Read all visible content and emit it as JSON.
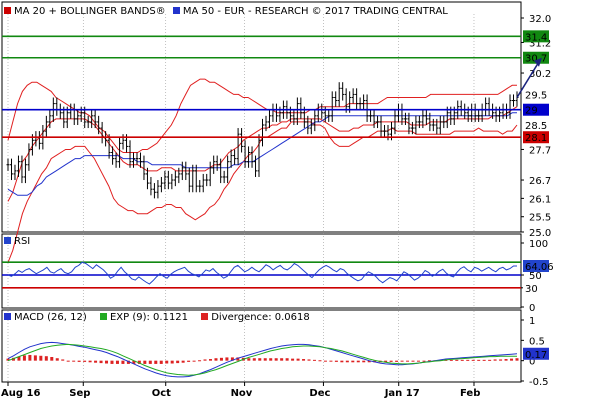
{
  "colors": {
    "price": "#000000",
    "bollinger": "#e02020",
    "ma50": "#2233cc",
    "resistance": "#118811",
    "pivot": "#0000cc",
    "support": "#cc0000",
    "arrow": "#1a237e",
    "rsi_line": "#2244cc",
    "macd_line": "#2233cc",
    "signal_line": "#22aa22",
    "divergence": "#dd2222",
    "grid": "#999999"
  },
  "chart_data": [
    {
      "type": "candlestick",
      "legend": [
        {
          "swatch": "#cc0000",
          "text": "MA 20 + BOLLINGER BANDS®"
        },
        {
          "swatch": "#2233cc",
          "text": "MA 50 - EUR - RESEARCH © 2017 TRADING CENTRAL"
        }
      ],
      "ylim": [
        25.0,
        32.0
      ],
      "y_ticks": [
        {
          "v": 32.0,
          "t": "32.0"
        },
        {
          "v": 31.2,
          "t": "31.2"
        },
        {
          "v": 30.2,
          "t": "30.2"
        },
        {
          "v": 27.7,
          "t": "27.7"
        },
        {
          "v": 26.7,
          "t": "26.7"
        },
        {
          "v": 26.1,
          "t": "26.1"
        },
        {
          "v": 25.5,
          "t": "25.5"
        },
        {
          "v": 25.0,
          "t": "25.0"
        }
      ],
      "levels": [
        {
          "name": "resistance-2",
          "value": 31.4,
          "label": "31.4",
          "color": "#118811"
        },
        {
          "name": "resistance-1",
          "value": 30.7,
          "label": "30.7",
          "color": "#118811"
        },
        {
          "name": "pivot",
          "value": 29.0,
          "label": "29",
          "color": "#0000cc"
        },
        {
          "name": "support-1",
          "value": 28.1,
          "label": "28.1",
          "color": "#cc0000"
        }
      ],
      "value_tags": [
        {
          "value": 29.5,
          "label": "29.5",
          "color": "#cc0000"
        },
        {
          "value": 28.5,
          "label": "28.5",
          "color": "#cc0000"
        }
      ],
      "x_labels": [
        {
          "i": 0,
          "t": "Aug 16"
        },
        {
          "i": 21,
          "t": "Sep"
        },
        {
          "i": 44,
          "t": "Oct"
        },
        {
          "i": 66,
          "t": "Nov"
        },
        {
          "i": 88,
          "t": "Dec"
        },
        {
          "i": 109,
          "t": "Jan 17"
        },
        {
          "i": 130,
          "t": "Feb"
        }
      ],
      "close": [
        27.2,
        26.9,
        27.0,
        27.3,
        26.8,
        27.2,
        27.7,
        28.0,
        28.1,
        27.9,
        28.3,
        28.6,
        28.8,
        29.2,
        29.0,
        28.9,
        28.6,
        28.9,
        29.0,
        28.7,
        28.8,
        28.9,
        28.6,
        28.6,
        28.8,
        28.6,
        28.4,
        28.1,
        28.0,
        27.6,
        27.4,
        27.3,
        27.9,
        28.0,
        27.8,
        27.3,
        27.4,
        27.4,
        27.3,
        26.9,
        26.6,
        26.4,
        26.3,
        26.5,
        26.6,
        26.8,
        26.6,
        26.7,
        26.8,
        26.9,
        27.1,
        26.9,
        26.5,
        27.0,
        26.5,
        26.5,
        26.7,
        26.7,
        27.1,
        27.3,
        27.2,
        26.8,
        26.8,
        27.3,
        27.5,
        27.4,
        28.2,
        27.8,
        27.3,
        27.6,
        27.3,
        27.0,
        28.0,
        28.5,
        28.6,
        28.8,
        29.0,
        28.8,
        28.9,
        29.1,
        28.9,
        28.8,
        28.7,
        29.2,
        28.9,
        28.6,
        28.4,
        28.5,
        28.8,
        29.0,
        28.9,
        28.8,
        28.8,
        29.4,
        29.3,
        29.7,
        29.5,
        29.1,
        29.4,
        29.5,
        29.2,
        29.2,
        29.3,
        28.8,
        28.8,
        28.6,
        28.6,
        28.3,
        28.3,
        28.2,
        28.4,
        28.8,
        29.0,
        28.7,
        28.7,
        28.4,
        28.4,
        28.6,
        28.6,
        28.8,
        28.7,
        28.5,
        28.5,
        28.4,
        28.6,
        28.6,
        28.9,
        28.7,
        28.9,
        29.1,
        29.0,
        28.9,
        28.8,
        29.0,
        28.8,
        28.8,
        29.0,
        29.2,
        29.0,
        28.9,
        28.8,
        28.9,
        29.0,
        28.9,
        29.3,
        29.3,
        29.4
      ],
      "ma20": [
        26.0,
        26.3,
        26.8,
        27.3,
        27.5,
        27.8,
        28.0,
        28.2,
        28.4,
        28.6,
        28.7,
        28.7,
        28.7,
        28.7,
        28.7,
        28.7,
        28.7,
        28.6,
        28.5,
        28.3,
        28.1,
        27.9,
        27.7,
        27.5,
        27.3,
        27.2,
        27.2,
        27.2,
        27.1,
        27.0,
        27.0,
        27.0,
        27.1,
        27.1,
        27.1,
        27.0,
        27.0,
        27.0,
        27.0,
        27.0,
        27.0,
        27.0,
        27.1,
        27.2,
        27.2,
        27.4,
        27.6,
        27.7,
        27.8,
        28.0,
        28.1,
        28.2,
        28.3,
        28.4,
        28.4,
        28.5,
        28.5,
        28.6,
        28.6,
        28.7,
        28.7,
        28.7,
        28.7,
        28.7,
        28.7,
        28.7,
        28.6,
        28.5,
        28.4,
        28.3,
        28.3,
        28.3,
        28.4,
        28.4,
        28.5,
        28.5,
        28.5,
        28.6,
        28.6,
        28.6,
        28.6,
        28.6,
        28.6,
        28.6,
        28.5,
        28.5,
        28.5,
        28.5,
        28.6,
        28.6,
        28.6,
        28.6,
        28.7,
        28.7,
        28.7,
        28.7,
        28.7,
        28.7,
        28.7,
        28.7,
        28.7,
        28.8,
        28.8,
        28.8,
        28.9,
        29.0,
        29.1
      ],
      "bb_upper": [
        28.0,
        28.6,
        29.2,
        29.6,
        29.8,
        29.9,
        29.9,
        29.8,
        29.7,
        29.6,
        29.4,
        29.3,
        29.2,
        29.1,
        29.0,
        28.9,
        28.9,
        28.8,
        28.6,
        28.4,
        28.3,
        28.1,
        27.9,
        27.7,
        27.6,
        27.6,
        27.6,
        27.6,
        27.7,
        27.7,
        27.8,
        27.9,
        28.1,
        28.3,
        28.5,
        28.8,
        29.2,
        29.5,
        29.8,
        29.9,
        30.0,
        30.0,
        29.9,
        29.9,
        29.8,
        29.7,
        29.6,
        29.5,
        29.5,
        29.4,
        29.4,
        29.3,
        29.2,
        29.1,
        29.0,
        29.0,
        28.9,
        28.9,
        28.9,
        28.9,
        28.9,
        28.9,
        28.9,
        29.0,
        29.0,
        29.1,
        29.1,
        29.1,
        29.1,
        29.1,
        29.1,
        29.2,
        29.2,
        29.2,
        29.2,
        29.2,
        29.2,
        29.2,
        29.3,
        29.4,
        29.4,
        29.4,
        29.4,
        29.4,
        29.4,
        29.4,
        29.4,
        29.4,
        29.5,
        29.5,
        29.5,
        29.5,
        29.5,
        29.5,
        29.5,
        29.5,
        29.5,
        29.5,
        29.5,
        29.5,
        29.5,
        29.5,
        29.5,
        29.6,
        29.7,
        29.8,
        29.8
      ],
      "bb_lower": [
        24.0,
        24.4,
        25.0,
        25.6,
        26.0,
        26.3,
        26.6,
        26.9,
        27.1,
        27.4,
        27.5,
        27.6,
        27.7,
        27.7,
        27.8,
        27.8,
        27.8,
        27.6,
        27.4,
        27.1,
        26.8,
        26.5,
        26.1,
        25.9,
        25.8,
        25.7,
        25.7,
        25.6,
        25.6,
        25.6,
        25.7,
        25.8,
        25.8,
        25.9,
        25.9,
        25.8,
        25.8,
        25.6,
        25.5,
        25.4,
        25.5,
        25.6,
        25.8,
        25.9,
        26.1,
        26.4,
        26.6,
        26.9,
        27.1,
        27.3,
        27.5,
        27.6,
        27.8,
        28.1,
        28.1,
        28.2,
        28.3,
        28.4,
        28.4,
        28.6,
        28.6,
        28.6,
        28.6,
        28.6,
        28.5,
        28.5,
        28.4,
        28.1,
        27.9,
        27.8,
        27.8,
        27.8,
        27.9,
        28.0,
        28.1,
        28.1,
        28.2,
        28.3,
        28.3,
        28.3,
        28.4,
        28.3,
        28.3,
        28.3,
        28.3,
        28.2,
        28.2,
        28.2,
        28.2,
        28.2,
        28.2,
        28.2,
        28.2,
        28.3,
        28.3,
        28.3,
        28.3,
        28.3,
        28.4,
        28.3,
        28.3,
        28.3,
        28.3,
        28.2,
        28.3,
        28.3,
        28.5
      ],
      "ma50": [
        26.4,
        26.3,
        26.2,
        26.2,
        26.2,
        26.3,
        26.5,
        26.6,
        26.8,
        26.9,
        27.0,
        27.1,
        27.2,
        27.3,
        27.4,
        27.4,
        27.5,
        27.5,
        27.5,
        27.5,
        27.5,
        27.5,
        27.5,
        27.5,
        27.4,
        27.4,
        27.4,
        27.3,
        27.3,
        27.3,
        27.2,
        27.2,
        27.2,
        27.2,
        27.2,
        27.2,
        27.2,
        27.1,
        27.1,
        27.1,
        27.1,
        27.1,
        27.1,
        27.1,
        27.1,
        27.1,
        27.1,
        27.2,
        27.2,
        27.3,
        27.3,
        27.3,
        27.4,
        27.5,
        27.6,
        27.7,
        27.8,
        27.9,
        28.0,
        28.1,
        28.2,
        28.3,
        28.4,
        28.5,
        28.6,
        28.6,
        28.7,
        28.8,
        28.8,
        28.8,
        28.8,
        28.8,
        28.8,
        28.8,
        28.8,
        28.8,
        28.8,
        28.8,
        28.8,
        28.8,
        28.8,
        28.8,
        28.8,
        28.8,
        28.8,
        28.8,
        28.8,
        28.8,
        28.8,
        28.8,
        28.8,
        28.8,
        28.8,
        28.8,
        28.8,
        28.8,
        28.8,
        28.8,
        28.8,
        28.8,
        28.8,
        28.8,
        28.8,
        28.8,
        28.8,
        28.9,
        28.9
      ],
      "projection": {
        "from_value": 29.4,
        "to_value": 30.7
      }
    },
    {
      "type": "line",
      "title": "RSI",
      "ylim": [
        0,
        100
      ],
      "y_ticks": [
        {
          "v": 100,
          "t": "100"
        },
        {
          "v": 50,
          "t": "50"
        },
        {
          "v": 30,
          "t": "30"
        },
        {
          "v": 0,
          "t": "0"
        }
      ],
      "levels": [
        {
          "name": "rsi-70",
          "value": 70,
          "color": "#118811"
        },
        {
          "name": "rsi-50",
          "value": 50,
          "color": "#0000cc"
        },
        {
          "name": "rsi-30",
          "value": 30,
          "label": "30",
          "color": "#cc0000"
        }
      ],
      "value_tag": {
        "value": 64.06,
        "label": "64.06"
      },
      "values": [
        50,
        48,
        52,
        57,
        54,
        58,
        60,
        56,
        52,
        55,
        58,
        62,
        55,
        53,
        57,
        60,
        54,
        52,
        55,
        62,
        65,
        70,
        68,
        64,
        60,
        66,
        62,
        58,
        52,
        45,
        48,
        56,
        62,
        55,
        50,
        44,
        42,
        47,
        43,
        39,
        36,
        41,
        47,
        52,
        48,
        45,
        51,
        55,
        58,
        60,
        62,
        56,
        52,
        50,
        47,
        52,
        58,
        56,
        60,
        54,
        50,
        45,
        48,
        55,
        62,
        65,
        60,
        55,
        58,
        62,
        58,
        55,
        60,
        66,
        63,
        58,
        62,
        65,
        60,
        58,
        62,
        68,
        65,
        60,
        55,
        50,
        46,
        52,
        58,
        62,
        65,
        62,
        58,
        55,
        60,
        58,
        52,
        48,
        44,
        41,
        43,
        50,
        55,
        52,
        48,
        42,
        38,
        42,
        46,
        44,
        41,
        48,
        55,
        52,
        47,
        42,
        45,
        50,
        57,
        54,
        48,
        51,
        56,
        59,
        53,
        49,
        47,
        54,
        60,
        63,
        58,
        55,
        62,
        60,
        56,
        59,
        62,
        58,
        55,
        60,
        62,
        58,
        60,
        64,
        64.06
      ]
    },
    {
      "type": "line",
      "legend": [
        {
          "swatch": "#2233cc",
          "text": "MACD (26, 12)"
        },
        {
          "swatch": "#22aa22",
          "text": "EXP (9): 0.1121"
        },
        {
          "swatch": "#dd2222",
          "text": "Divergence: 0.0618"
        }
      ],
      "ylim": [
        -0.5,
        1.0
      ],
      "y_ticks": [
        {
          "v": 1.0,
          "t": "1"
        },
        {
          "v": 0.5,
          "t": "0.5"
        },
        {
          "v": 0,
          "t": "0"
        },
        {
          "v": -0.5,
          "t": "-0.5"
        }
      ],
      "value_tag": {
        "value": 0.17,
        "label": "0.17"
      },
      "macd": [
        0.05,
        0.12,
        0.2,
        0.28,
        0.34,
        0.38,
        0.42,
        0.44,
        0.45,
        0.44,
        0.42,
        0.4,
        0.38,
        0.35,
        0.33,
        0.3,
        0.27,
        0.24,
        0.2,
        0.15,
        0.1,
        0.04,
        -0.02,
        -0.08,
        -0.14,
        -0.2,
        -0.25,
        -0.3,
        -0.34,
        -0.37,
        -0.39,
        -0.4,
        -0.4,
        -0.39,
        -0.36,
        -0.32,
        -0.27,
        -0.22,
        -0.16,
        -0.1,
        -0.04,
        0.01,
        0.06,
        0.1,
        0.14,
        0.18,
        0.22,
        0.26,
        0.3,
        0.33,
        0.36,
        0.38,
        0.39,
        0.4,
        0.4,
        0.39,
        0.37,
        0.35,
        0.32,
        0.28,
        0.24,
        0.2,
        0.16,
        0.12,
        0.08,
        0.04,
        0.0,
        -0.03,
        -0.06,
        -0.08,
        -0.09,
        -0.1,
        -0.1,
        -0.09,
        -0.08,
        -0.06,
        -0.04,
        -0.02,
        0.0,
        0.02,
        0.04,
        0.05,
        0.06,
        0.07,
        0.08,
        0.09,
        0.1,
        0.11,
        0.12,
        0.13,
        0.14,
        0.15,
        0.16,
        0.17
      ],
      "signal": [
        0.0,
        0.05,
        0.1,
        0.15,
        0.2,
        0.25,
        0.3,
        0.33,
        0.36,
        0.38,
        0.39,
        0.4,
        0.39,
        0.38,
        0.36,
        0.34,
        0.32,
        0.3,
        0.27,
        0.23,
        0.18,
        0.12,
        0.06,
        0.0,
        -0.06,
        -0.12,
        -0.17,
        -0.22,
        -0.26,
        -0.3,
        -0.32,
        -0.34,
        -0.35,
        -0.36,
        -0.35,
        -0.33,
        -0.3,
        -0.26,
        -0.22,
        -0.17,
        -0.12,
        -0.07,
        -0.02,
        0.03,
        0.08,
        0.12,
        0.16,
        0.2,
        0.24,
        0.27,
        0.3,
        0.32,
        0.34,
        0.35,
        0.36,
        0.36,
        0.35,
        0.34,
        0.32,
        0.3,
        0.27,
        0.24,
        0.2,
        0.16,
        0.12,
        0.08,
        0.04,
        0.01,
        -0.02,
        -0.04,
        -0.06,
        -0.07,
        -0.08,
        -0.08,
        -0.07,
        -0.06,
        -0.04,
        -0.03,
        -0.01,
        0.0,
        0.02,
        0.03,
        0.04,
        0.05,
        0.06,
        0.07,
        0.08,
        0.09,
        0.1,
        0.1,
        0.11,
        0.11,
        0.11,
        0.11
      ]
    }
  ]
}
